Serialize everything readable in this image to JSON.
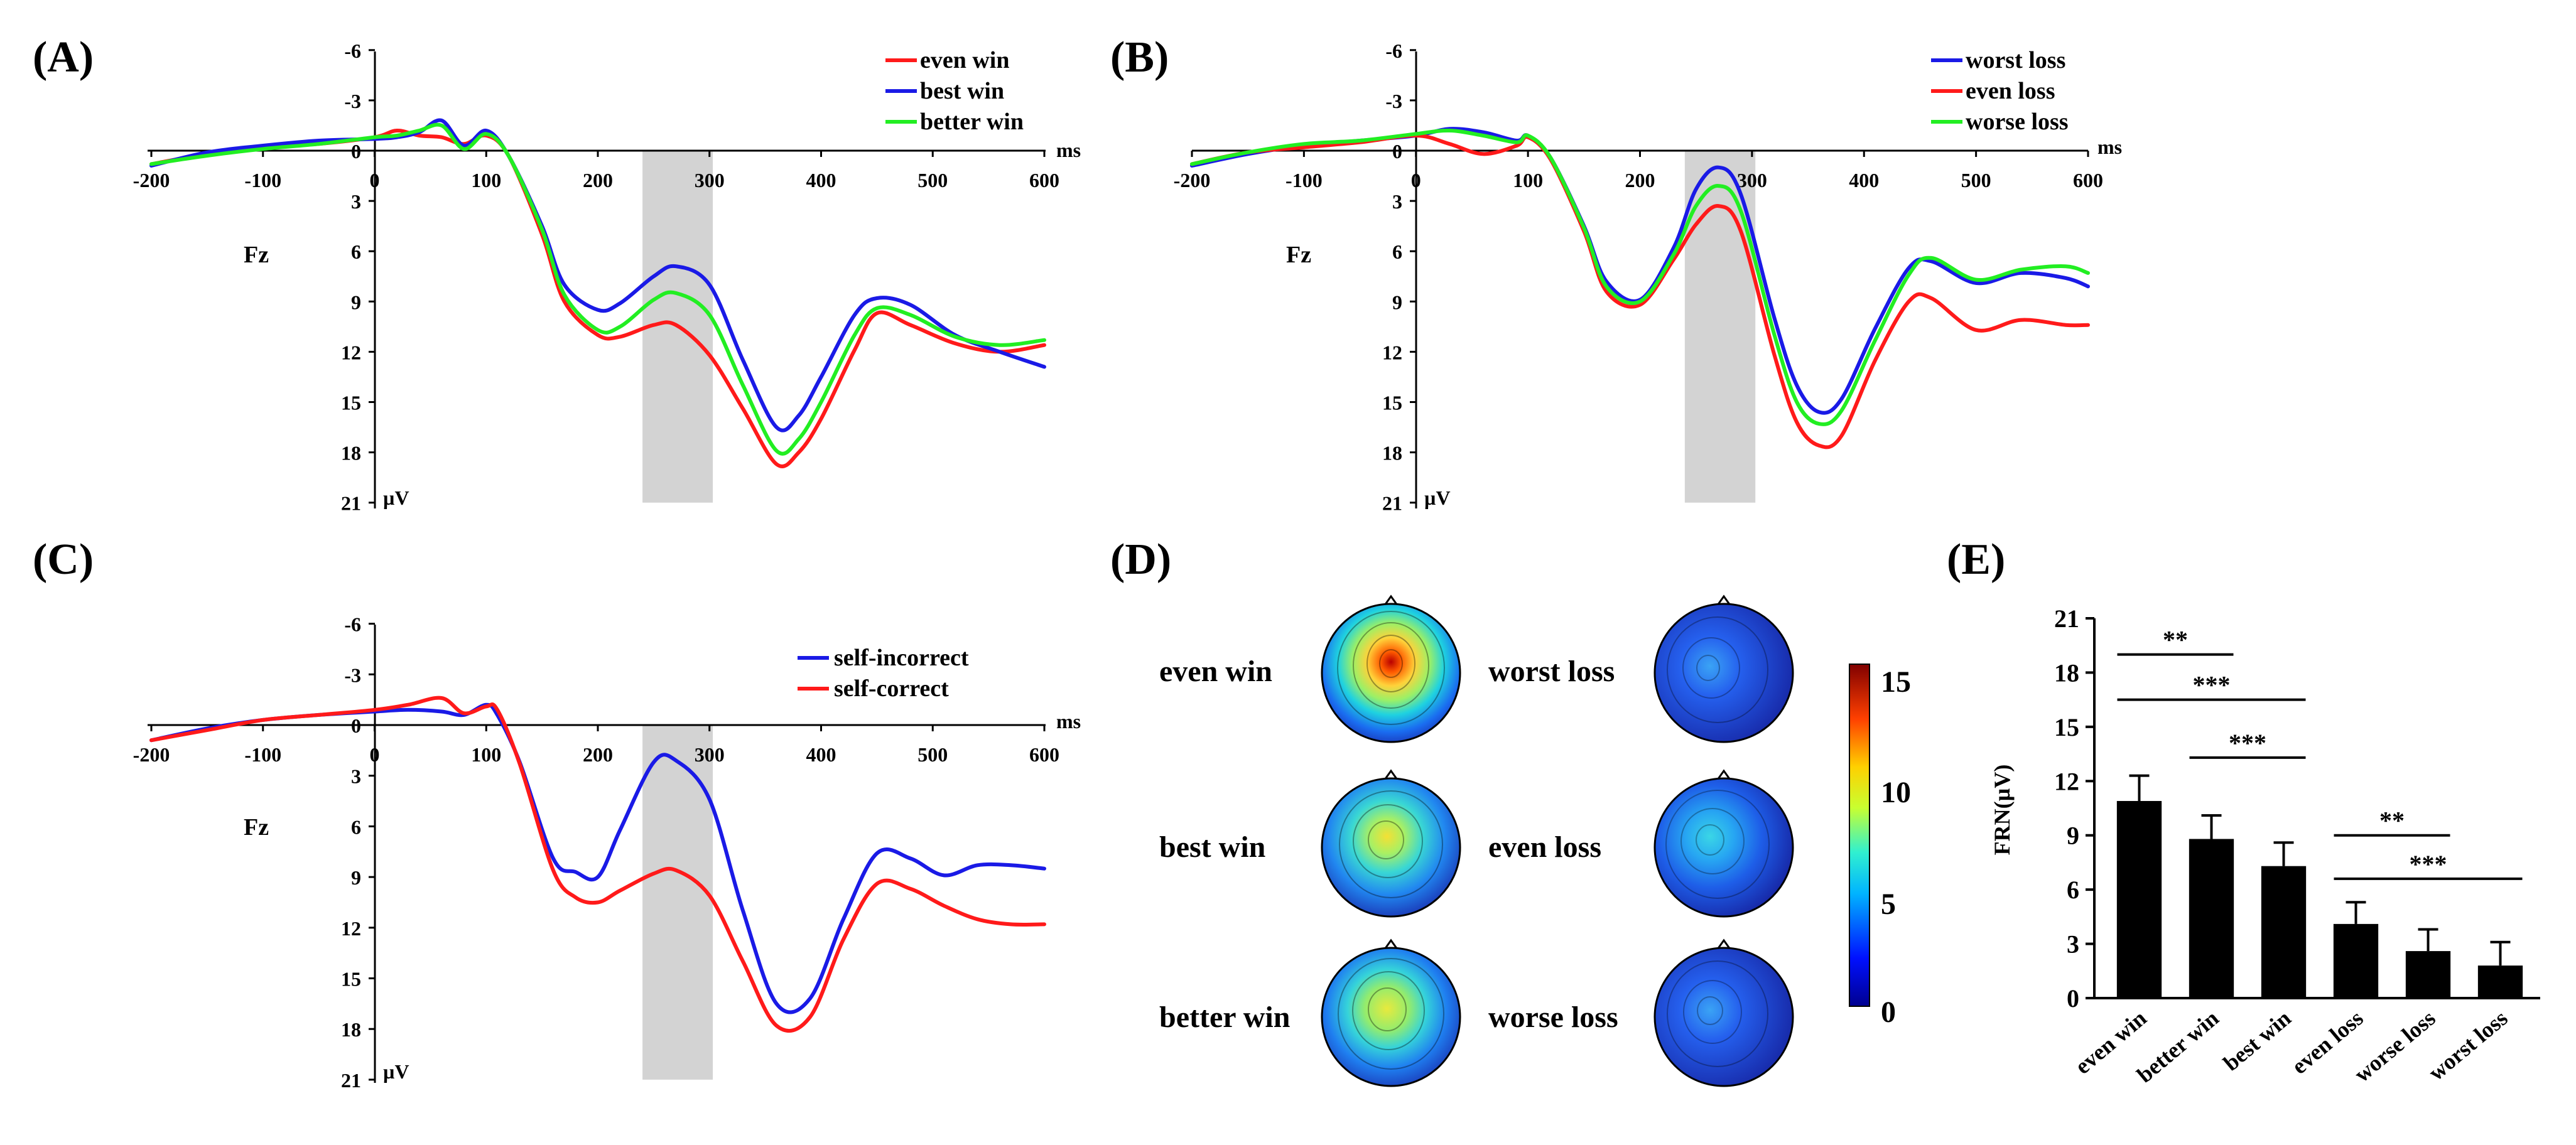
{
  "chart_data": [
    {
      "panel": "(A)",
      "type": "line",
      "channel": "Fz",
      "x_unit": "ms",
      "y_unit": "µV",
      "xlim": [
        -200,
        600
      ],
      "ylim": [
        21,
        -6
      ],
      "y_inverted": true,
      "x_ticks": [
        "-200",
        "-100",
        "0",
        "100",
        "200",
        "300",
        "400",
        "500",
        "600"
      ],
      "y_ticks": [
        "-6",
        "-3",
        "0",
        "3",
        "6",
        "9",
        "12",
        "15",
        "18",
        "21"
      ],
      "shaded_window_ms": [
        240,
        303
      ],
      "series": [
        {
          "name": "even win",
          "color": "#ff1a1a",
          "x": [
            -200,
            -150,
            -100,
            -50,
            0,
            20,
            40,
            60,
            80,
            100,
            120,
            150,
            170,
            200,
            220,
            250,
            270,
            300,
            330,
            360,
            380,
            400,
            430,
            450,
            480,
            520,
            560,
            600
          ],
          "y": [
            0.8,
            0.2,
            -0.2,
            -0.4,
            -0.8,
            -1.2,
            -0.9,
            -0.8,
            -0.4,
            -0.9,
            0.3,
            5,
            9,
            11,
            11.1,
            10.4,
            10.4,
            12.2,
            15.4,
            18.7,
            18,
            16,
            11.9,
            9.7,
            10.4,
            11.5,
            12,
            11.6
          ]
        },
        {
          "name": "best win",
          "color": "#1a1ae6",
          "x": [
            -200,
            -150,
            -100,
            -50,
            0,
            20,
            40,
            60,
            80,
            100,
            120,
            150,
            170,
            200,
            220,
            250,
            270,
            300,
            330,
            360,
            380,
            400,
            430,
            450,
            480,
            520,
            560,
            600
          ],
          "y": [
            0.9,
            0.1,
            -0.3,
            -0.6,
            -0.7,
            -0.8,
            -1.1,
            -1.8,
            -0.3,
            -1.2,
            0.3,
            4.5,
            8,
            9.5,
            9.1,
            7.5,
            6.9,
            8,
            12.5,
            16.5,
            15.8,
            13.5,
            9.8,
            8.8,
            9.2,
            11,
            12,
            12.9
          ]
        },
        {
          "name": "better win",
          "color": "#22ee22",
          "x": [
            -200,
            -150,
            -100,
            -50,
            0,
            20,
            40,
            60,
            80,
            100,
            120,
            150,
            170,
            200,
            220,
            250,
            270,
            300,
            330,
            360,
            380,
            400,
            430,
            450,
            480,
            520,
            560,
            600
          ],
          "y": [
            0.8,
            0.3,
            -0.1,
            -0.4,
            -0.8,
            -0.9,
            -1.2,
            -1.5,
            -0.1,
            -1.0,
            0.3,
            4.7,
            8.6,
            10.7,
            10.5,
            8.9,
            8.5,
            9.8,
            14,
            17.9,
            17.2,
            15,
            11,
            9.4,
            9.8,
            11.1,
            11.6,
            11.3
          ]
        }
      ]
    },
    {
      "panel": "(B)",
      "type": "line",
      "channel": "Fz",
      "x_unit": "ms",
      "y_unit": "µV",
      "xlim": [
        -200,
        600
      ],
      "ylim": [
        21,
        -6
      ],
      "y_inverted": true,
      "x_ticks": [
        "-200",
        "-100",
        "0",
        "100",
        "200",
        "300",
        "400",
        "500",
        "600"
      ],
      "y_ticks": [
        "-6",
        "-3",
        "0",
        "3",
        "6",
        "9",
        "12",
        "15",
        "18",
        "21"
      ],
      "shaded_window_ms": [
        240,
        303
      ],
      "series": [
        {
          "name": "worst loss",
          "color": "#1a1ae6",
          "x": [
            -200,
            -150,
            -100,
            -50,
            0,
            30,
            60,
            90,
            100,
            120,
            150,
            170,
            200,
            230,
            250,
            270,
            290,
            320,
            340,
            360,
            380,
            410,
            440,
            460,
            500,
            540,
            580,
            600
          ],
          "y": [
            0.9,
            0.2,
            -0.3,
            -0.6,
            -0.9,
            -1.3,
            -1.1,
            -0.6,
            -0.9,
            0.4,
            4.5,
            7.8,
            8.9,
            5.8,
            2.3,
            1.0,
            2.6,
            10,
            14,
            15.6,
            14.8,
            10.6,
            7,
            6.6,
            7.9,
            7.3,
            7.6,
            8.1
          ]
        },
        {
          "name": "even loss",
          "color": "#ff1a1a",
          "x": [
            -200,
            -150,
            -100,
            -50,
            0,
            30,
            60,
            90,
            100,
            120,
            150,
            170,
            200,
            230,
            250,
            270,
            290,
            320,
            340,
            360,
            380,
            410,
            440,
            460,
            500,
            540,
            580,
            600
          ],
          "y": [
            0.8,
            0.1,
            -0.2,
            -0.5,
            -0.9,
            -0.4,
            0.2,
            -0.3,
            -0.8,
            0.5,
            4.8,
            8.4,
            9.2,
            6.5,
            4.4,
            3.3,
            4.8,
            12.2,
            16.2,
            17.6,
            17,
            12.5,
            9.0,
            8.8,
            10.7,
            10.1,
            10.4,
            10.4
          ]
        },
        {
          "name": "worse loss",
          "color": "#22ee22",
          "x": [
            -200,
            -150,
            -100,
            -50,
            0,
            30,
            60,
            90,
            100,
            120,
            150,
            170,
            200,
            230,
            250,
            270,
            290,
            320,
            340,
            360,
            380,
            410,
            440,
            460,
            500,
            540,
            580,
            600
          ],
          "y": [
            0.8,
            0.1,
            -0.4,
            -0.6,
            -1.0,
            -1.2,
            -0.9,
            -0.5,
            -0.9,
            0.4,
            4.6,
            8.1,
            9.0,
            6.2,
            3.3,
            2.1,
            3.6,
            11,
            15,
            16.3,
            15.5,
            11.3,
            7.4,
            6.4,
            7.7,
            7.1,
            6.9,
            7.3
          ]
        }
      ]
    },
    {
      "panel": "(C)",
      "type": "line",
      "channel": "Fz",
      "x_unit": "ms",
      "y_unit": "µV",
      "xlim": [
        -200,
        600
      ],
      "ylim": [
        21,
        -6
      ],
      "y_inverted": true,
      "x_ticks": [
        "-200",
        "-100",
        "0",
        "100",
        "200",
        "300",
        "400",
        "500",
        "600"
      ],
      "y_ticks": [
        "-6",
        "-3",
        "0",
        "3",
        "6",
        "9",
        "12",
        "15",
        "18",
        "21"
      ],
      "shaded_window_ms": [
        240,
        303
      ],
      "series": [
        {
          "name": "self-incorrect",
          "color": "#1a1ae6",
          "x": [
            -200,
            -150,
            -100,
            -50,
            0,
            30,
            60,
            80,
            100,
            110,
            130,
            160,
            180,
            200,
            220,
            250,
            270,
            300,
            330,
            360,
            390,
            420,
            450,
            480,
            510,
            540,
            570,
            600
          ],
          "y": [
            0.9,
            0.2,
            -0.3,
            -0.6,
            -0.8,
            -0.9,
            -0.8,
            -0.6,
            -1.2,
            -0.6,
            2.2,
            7.9,
            8.7,
            9,
            6.2,
            2.2,
            2.1,
            4.4,
            11,
            16.5,
            16.2,
            11.5,
            7.6,
            7.9,
            8.9,
            8.3,
            8.3,
            8.5
          ]
        },
        {
          "name": "self-correct",
          "color": "#ff1a1a",
          "x": [
            -200,
            -150,
            -100,
            -50,
            0,
            30,
            60,
            80,
            100,
            110,
            130,
            160,
            180,
            200,
            220,
            250,
            270,
            300,
            330,
            360,
            390,
            420,
            450,
            480,
            510,
            540,
            570,
            600
          ],
          "y": [
            0.9,
            0.3,
            -0.3,
            -0.6,
            -0.9,
            -1.2,
            -1.6,
            -0.7,
            -1.1,
            -0.9,
            2.3,
            8.6,
            10.2,
            10.5,
            9.8,
            8.8,
            8.6,
            10.1,
            14,
            17.8,
            17.3,
            12.7,
            9.4,
            9.7,
            10.7,
            11.5,
            11.8,
            11.8
          ]
        }
      ]
    },
    {
      "panel": "(D)",
      "type": "heatmap",
      "description_labels": [
        "even win",
        "best win",
        "better win",
        "worst loss",
        "even loss",
        "worse loss"
      ],
      "maps": [
        {
          "label": "even win",
          "peak": 15
        },
        {
          "label": "best win",
          "peak": 9
        },
        {
          "label": "better win",
          "peak": 11
        },
        {
          "label": "worst loss",
          "peak": 4
        },
        {
          "label": "even loss",
          "peak": 6
        },
        {
          "label": "worse loss",
          "peak": 4.5
        }
      ],
      "colorbar": {
        "min": 0,
        "max": 15,
        "ticks": [
          "15",
          "10",
          "5",
          "0"
        ]
      }
    },
    {
      "panel": "(E)",
      "type": "bar",
      "ylabel": "FRN(µV)",
      "ylim": [
        0,
        21
      ],
      "y_ticks": [
        "0",
        "3",
        "6",
        "9",
        "12",
        "15",
        "18",
        "21"
      ],
      "categories": [
        "even win",
        "better win",
        "best win",
        "even loss",
        "worse loss",
        "worst loss"
      ],
      "values": [
        10.9,
        8.8,
        7.3,
        4.1,
        2.6,
        1.8
      ],
      "errors": [
        1.4,
        1.3,
        1.3,
        1.2,
        1.2,
        1.3
      ],
      "significance": [
        {
          "from": "even win",
          "to": "better win",
          "label": "**"
        },
        {
          "from": "even win",
          "to": "best win",
          "label": "***"
        },
        {
          "from": "better win",
          "to": "best win",
          "label": "***"
        },
        {
          "from": "even loss",
          "to": "worse loss",
          "label": "**"
        },
        {
          "from": "even loss",
          "to": "worst loss",
          "label": "***"
        }
      ]
    }
  ]
}
